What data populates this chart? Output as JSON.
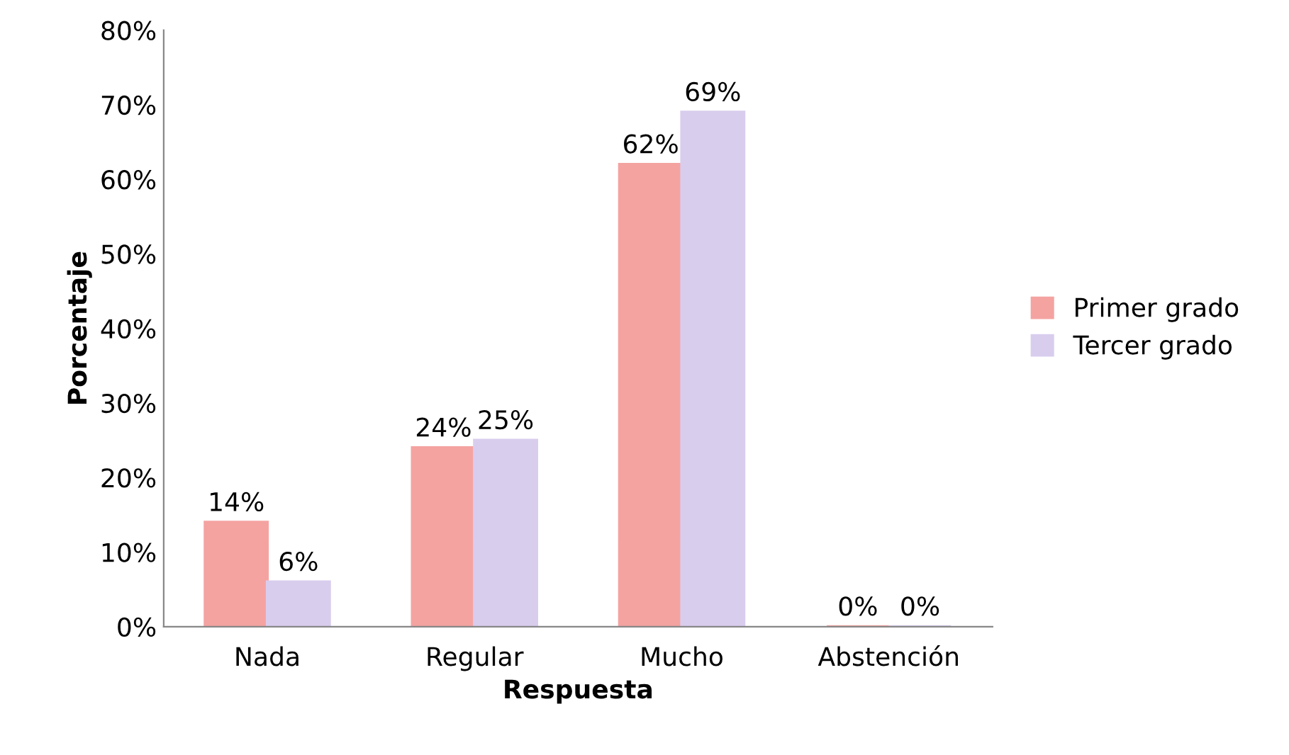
{
  "chart_data": {
    "type": "bar",
    "xlabel": "Respuesta",
    "ylabel": "Porcentaje",
    "categories": [
      "Nada",
      "Regular",
      "Mucho",
      "Abstención"
    ],
    "series": [
      {
        "name": "Primer grado",
        "color": "#f4a3a1",
        "values": [
          14,
          24,
          62,
          0
        ],
        "value_labels": [
          "14%",
          "24%",
          "62%",
          "0%"
        ]
      },
      {
        "name": "Tercer grado",
        "color": "#d9cdee",
        "values": [
          6,
          25,
          69,
          0
        ],
        "value_labels": [
          "6%",
          "25%",
          "69%",
          "0%"
        ]
      }
    ],
    "ylim": [
      0,
      80
    ],
    "yticks": [
      {
        "value": 0,
        "label": "0%"
      },
      {
        "value": 10,
        "label": "10%"
      },
      {
        "value": 20,
        "label": "20%"
      },
      {
        "value": 30,
        "label": "30%"
      },
      {
        "value": 40,
        "label": "40%"
      },
      {
        "value": 50,
        "label": "50%"
      },
      {
        "value": 60,
        "label": "60%"
      },
      {
        "value": 70,
        "label": "70%"
      },
      {
        "value": 80,
        "label": "80%"
      }
    ],
    "grid": false,
    "legend": "right"
  }
}
